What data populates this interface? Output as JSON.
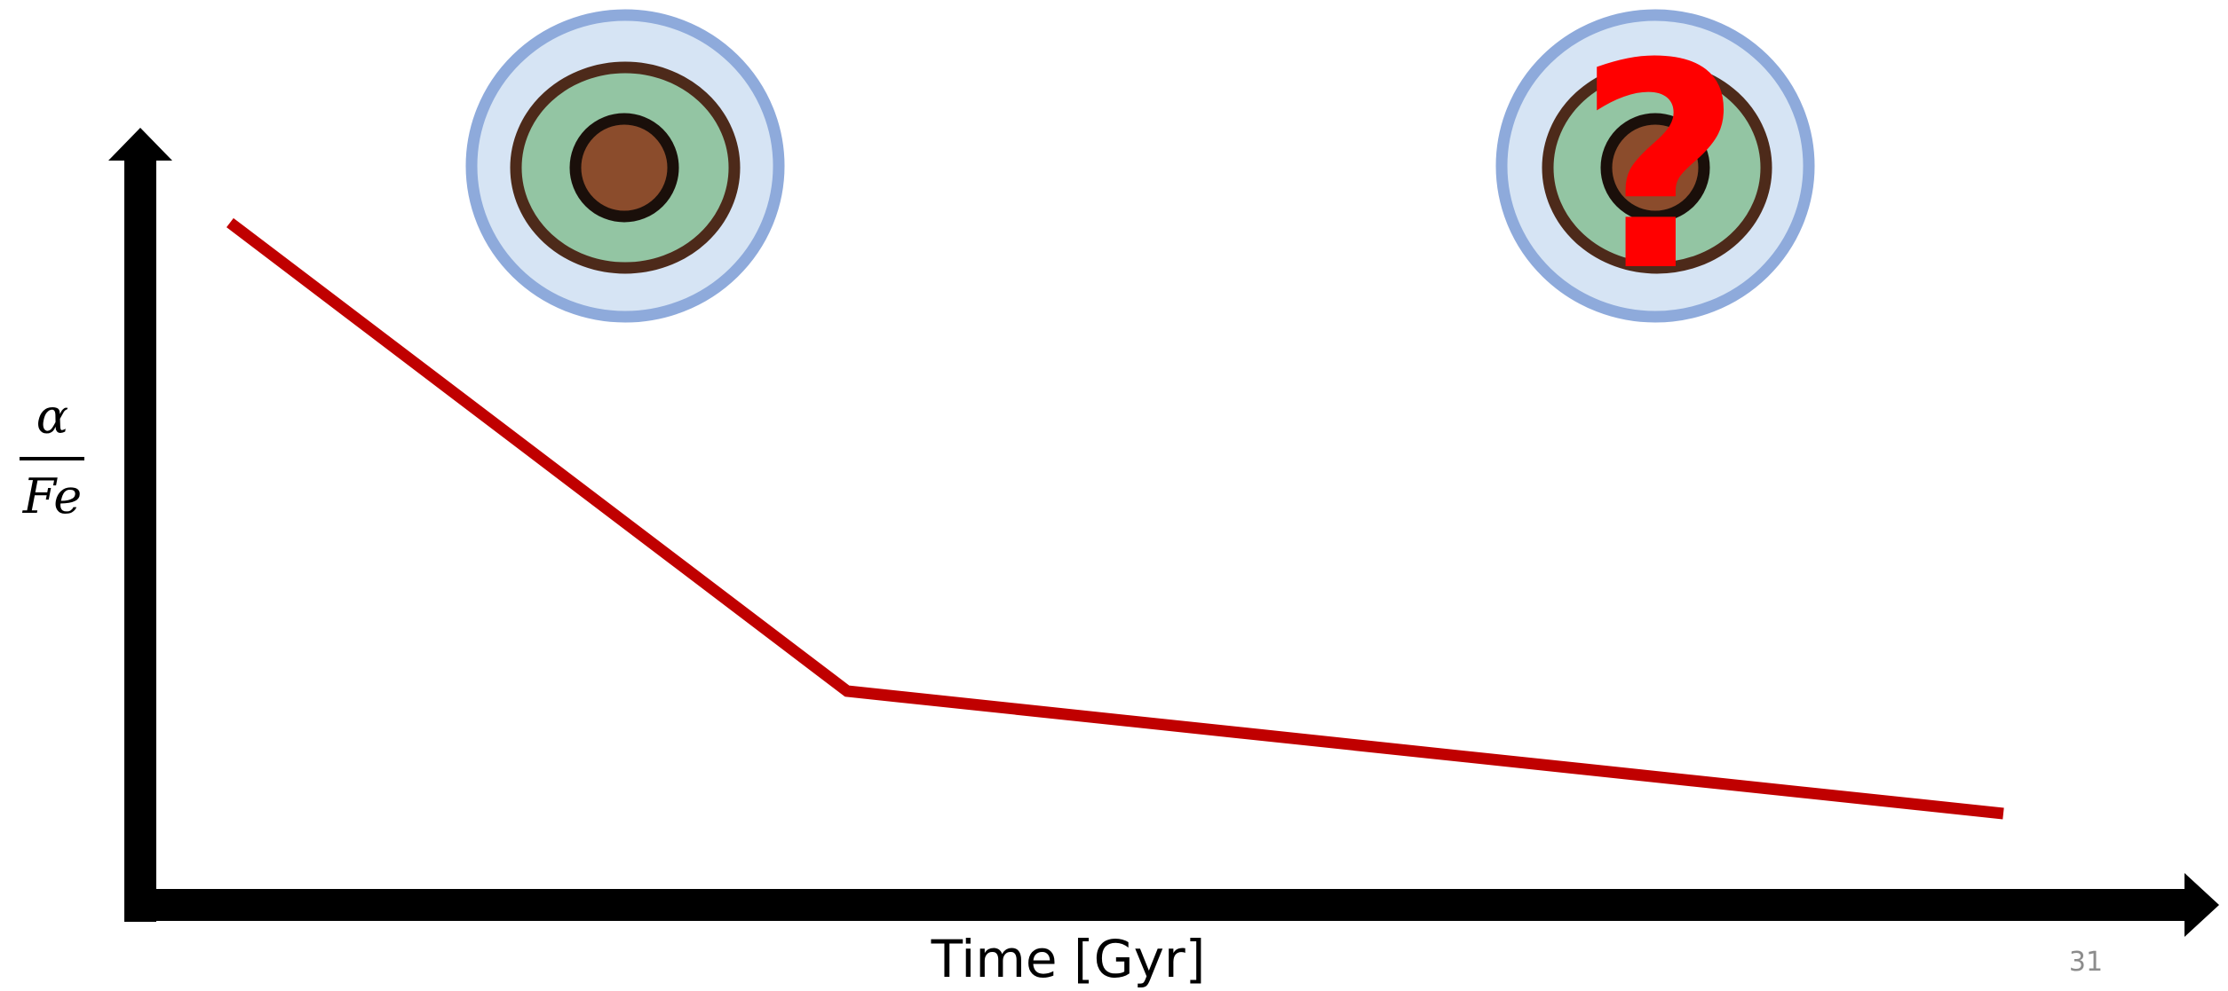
{
  "y_axis_label": {
    "numerator": "α",
    "denominator": "Fe"
  },
  "x_axis_label": "Time [Gyr]",
  "annotation": "?",
  "page_number": "31"
}
